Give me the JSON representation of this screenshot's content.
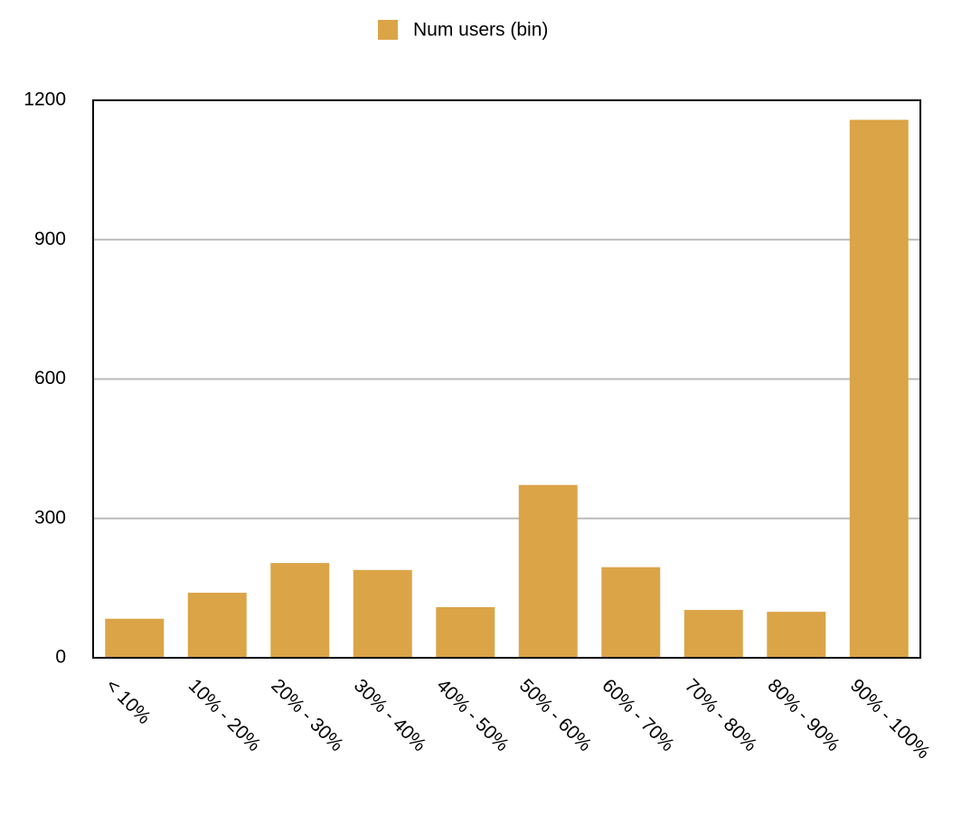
{
  "chart_data": {
    "type": "bar",
    "legend": "Num users (bin)",
    "color": "#dba447",
    "categories": [
      "< 10%",
      "10% - 20%",
      "20% - 30%",
      "30% - 40%",
      "40% - 50%",
      "50% - 60%",
      "60% - 70%",
      "70% - 80%",
      "80% - 90%",
      "90% - 100%"
    ],
    "values": [
      84,
      140,
      204,
      189,
      109,
      372,
      195,
      103,
      99,
      1158
    ],
    "ylim": [
      0,
      1200
    ],
    "yticks": [
      0,
      300,
      600,
      900,
      1200
    ],
    "grid": true
  }
}
